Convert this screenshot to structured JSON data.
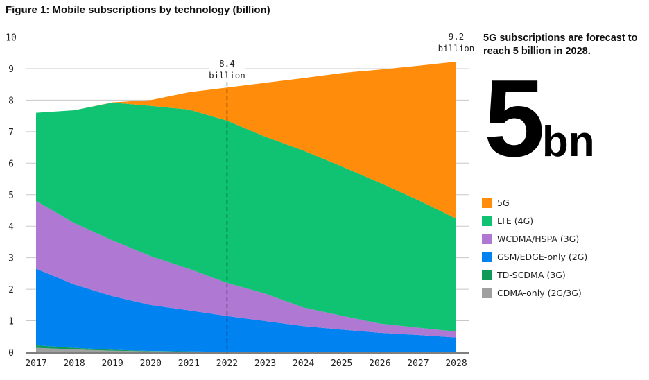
{
  "title": "Figure 1: Mobile subscriptions by technology (billion)",
  "side_panel": {
    "headline": "5G subscriptions are forecast to reach 5 billion in 2028.",
    "big_number": "5",
    "big_unit": "bn"
  },
  "chart_data": {
    "type": "area",
    "stacked": true,
    "title": "Figure 1: Mobile subscriptions by technology (billion)",
    "xlabel": "",
    "ylabel": "",
    "categories": [
      "2017",
      "2018",
      "2019",
      "2020",
      "2021",
      "2022",
      "2023",
      "2024",
      "2025",
      "2026",
      "2027",
      "2028"
    ],
    "ylim": [
      0,
      10
    ],
    "yticks": [
      "0",
      "1",
      "2",
      "3",
      "4",
      "5",
      "6",
      "7",
      "8",
      "9",
      "10"
    ],
    "grid": true,
    "legend_position": "right",
    "series": [
      {
        "name": "CDMA-only (2G/3G)",
        "color": "#a0a0a0",
        "values": [
          0.14,
          0.09,
          0.05,
          0.03,
          0.02,
          0.01,
          0,
          0,
          0,
          0,
          0,
          0
        ]
      },
      {
        "name": "TD-SCDMA (3G)",
        "color": "#0f9a5a",
        "values": [
          0.08,
          0.05,
          0.03,
          0.01,
          0.01,
          0,
          0,
          0,
          0,
          0,
          0,
          0
        ]
      },
      {
        "name": "GSM/EDGE-only (2G)",
        "color": "#0082f0",
        "values": [
          2.43,
          2.01,
          1.7,
          1.46,
          1.3,
          1.14,
          0.99,
          0.83,
          0.72,
          0.62,
          0.55,
          0.47
        ]
      },
      {
        "name": "WCDMA/HSPA (3G)",
        "color": "#af78d2",
        "values": [
          2.15,
          1.95,
          1.77,
          1.55,
          1.32,
          1.05,
          0.87,
          0.59,
          0.44,
          0.29,
          0.23,
          0.19
        ]
      },
      {
        "name": "LTE (4G)",
        "color": "#0fc373",
        "values": [
          2.8,
          3.58,
          4.37,
          4.77,
          5.05,
          5.15,
          4.98,
          4.98,
          4.74,
          4.47,
          4.05,
          3.58
        ]
      },
      {
        "name": "5G",
        "color": "#ff8c0a",
        "values": [
          0,
          0,
          0.01,
          0.18,
          0.55,
          1.05,
          1.71,
          2.3,
          2.96,
          3.59,
          4.26,
          4.98
        ]
      }
    ],
    "legend_order": [
      "5G",
      "LTE (4G)",
      "WCDMA/HSPA (3G)",
      "GSM/EDGE-only (2G)",
      "TD-SCDMA (3G)",
      "CDMA-only (2G/3G)"
    ],
    "annotations": [
      {
        "x": "2022",
        "value_line1": "8.4",
        "value_line2": "billion",
        "dashed_line": true
      },
      {
        "x": "2028",
        "value_line1": "9.2",
        "value_line2": "billion"
      }
    ]
  }
}
